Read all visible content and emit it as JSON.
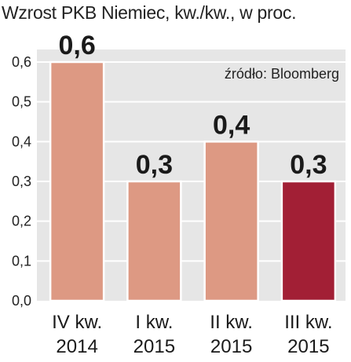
{
  "chart_data": {
    "type": "bar",
    "title": "Wzrost PKB Niemiec, kw./kw., w proc.",
    "source": "źródło: Bloomberg",
    "categories": [
      [
        "IV kw.",
        "2014"
      ],
      [
        "I kw.",
        "2015"
      ],
      [
        "II kw.",
        "2015"
      ],
      [
        "III kw.",
        "2015"
      ]
    ],
    "values": [
      0.6,
      0.3,
      0.4,
      0.3
    ],
    "value_labels": [
      "0,6",
      "0,3",
      "0,4",
      "0,3"
    ],
    "yticks": [
      0.0,
      0.1,
      0.2,
      0.3,
      0.4,
      0.5,
      0.6
    ],
    "ytick_labels": [
      "0,0",
      "0,1",
      "0,2",
      "0,3",
      "0,4",
      "0,5",
      "0,6"
    ],
    "ylim": [
      0,
      0.6
    ],
    "grid": true,
    "colors": {
      "background": "#ffffff",
      "plot_background": "#e6e6e6",
      "gridline": "#ffffff",
      "bar": "#dd9983",
      "bar_highlight": "#a21f35",
      "bar_outline": "#ffffff"
    },
    "highlight_index": 3
  }
}
